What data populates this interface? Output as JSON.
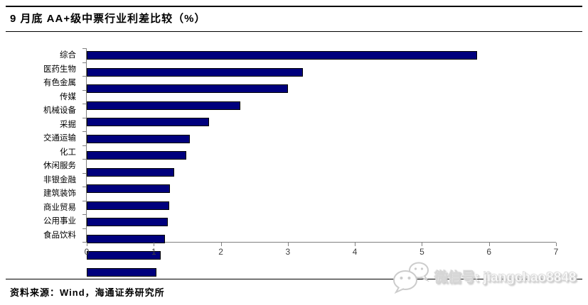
{
  "header": {
    "title": "9 月底  AA+级中票行业利差比较（%）"
  },
  "footer": {
    "source_note": "资料来源：Wind，海通证券研究所"
  },
  "watermark": {
    "label": "微信号: jiangchao8848",
    "icon": "wechat-icon",
    "style_color": "#e0e0e0"
  },
  "chart_data": {
    "type": "bar",
    "orientation": "horizontal",
    "title": "9 月底  AA+级中票行业利差比较（%）",
    "categories": [
      "综合",
      "医药生物",
      "有色金属",
      "传媒",
      "机械设备",
      "采掘",
      "交通运输",
      "化工",
      "休闲服务",
      "非银金融",
      "建筑装饰",
      "商业贸易",
      "公用事业",
      "食品饮料"
    ],
    "values": [
      5.8,
      3.2,
      2.98,
      2.27,
      1.8,
      1.52,
      1.46,
      1.28,
      1.22,
      1.21,
      1.19,
      1.15,
      1.08,
      1.02
    ],
    "xlabel": "",
    "ylabel": "",
    "xlim": [
      0,
      7
    ],
    "xticks": [
      0,
      1,
      2,
      3,
      4,
      5,
      6,
      7
    ],
    "grid": false,
    "legend": null,
    "bar_color": "#00007d",
    "bar_border_color": "#000000",
    "axis_color": "#808080"
  }
}
